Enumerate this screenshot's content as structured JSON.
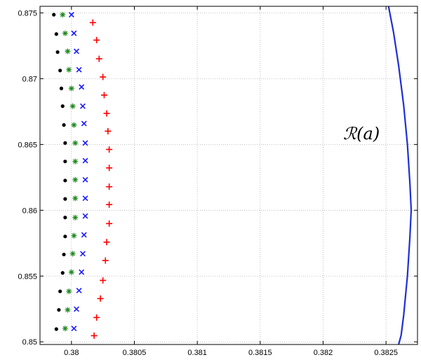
{
  "chart_data": {
    "type": "scatter",
    "xlim": [
      0.37975,
      0.38275
    ],
    "ylim": [
      0.8498,
      0.8755
    ],
    "x_ticks": [
      0.38,
      0.3805,
      0.381,
      0.3815,
      0.382,
      0.3825
    ],
    "x_tick_labels": [
      "0.38",
      "0.3805",
      "0.381",
      "0.3815",
      "0.382",
      "0.3825"
    ],
    "y_ticks": [
      0.85,
      0.855,
      0.86,
      0.865,
      0.87,
      0.875
    ],
    "y_tick_labels": [
      "0.85",
      "0.855",
      "0.86",
      "0.865",
      "0.87",
      "0.875"
    ],
    "grid": true,
    "annotation": {
      "text": "ℛ(a)",
      "x": 0.38245,
      "y": 0.8654
    },
    "series": [
      {
        "marker": "dot",
        "color": "#000000",
        "points": [
          [
            0.37986,
            0.87486
          ],
          [
            0.37988,
            0.87339
          ],
          [
            0.37989,
            0.87202
          ],
          [
            0.37991,
            0.87062
          ],
          [
            0.37992,
            0.86926
          ],
          [
            0.37993,
            0.86791
          ],
          [
            0.37994,
            0.86648
          ],
          [
            0.37995,
            0.86511
          ],
          [
            0.37995,
            0.86371
          ],
          [
            0.37995,
            0.86226
          ],
          [
            0.37995,
            0.86086
          ],
          [
            0.37995,
            0.85945
          ],
          [
            0.37995,
            0.85801
          ],
          [
            0.37994,
            0.85664
          ],
          [
            0.37993,
            0.85524
          ],
          [
            0.37991,
            0.85384
          ],
          [
            0.3799,
            0.85243
          ],
          [
            0.37988,
            0.85097
          ]
        ]
      },
      {
        "marker": "star",
        "color": "#1f8a1f",
        "points": [
          [
            0.37993,
            0.87486
          ],
          [
            0.37995,
            0.87345
          ],
          [
            0.37997,
            0.87208
          ],
          [
            0.37998,
            0.87068
          ],
          [
            0.38,
            0.86926
          ],
          [
            0.38001,
            0.86791
          ],
          [
            0.38002,
            0.86648
          ],
          [
            0.38003,
            0.86511
          ],
          [
            0.38003,
            0.86371
          ],
          [
            0.38003,
            0.86232
          ],
          [
            0.38003,
            0.86091
          ],
          [
            0.38003,
            0.85945
          ],
          [
            0.38002,
            0.85807
          ],
          [
            0.38001,
            0.8567
          ],
          [
            0.38,
            0.8553
          ],
          [
            0.37998,
            0.85384
          ],
          [
            0.37997,
            0.85243
          ],
          [
            0.37995,
            0.85102
          ]
        ]
      },
      {
        "marker": "x",
        "color": "#1a1aff",
        "points": [
          [
            0.38,
            0.87486
          ],
          [
            0.38002,
            0.87345
          ],
          [
            0.38004,
            0.87208
          ],
          [
            0.38006,
            0.87068
          ],
          [
            0.38008,
            0.86937
          ],
          [
            0.38009,
            0.86791
          ],
          [
            0.3801,
            0.86659
          ],
          [
            0.38011,
            0.86511
          ],
          [
            0.38011,
            0.86377
          ],
          [
            0.38011,
            0.86232
          ],
          [
            0.38011,
            0.86091
          ],
          [
            0.38011,
            0.85956
          ],
          [
            0.3801,
            0.85813
          ],
          [
            0.38009,
            0.8567
          ],
          [
            0.38008,
            0.8553
          ],
          [
            0.38006,
            0.8539
          ],
          [
            0.38004,
            0.85249
          ],
          [
            0.38002,
            0.85102
          ]
        ]
      },
      {
        "marker": "plus",
        "color": "#ff0000",
        "points": [
          [
            0.38017,
            0.87426
          ],
          [
            0.3802,
            0.87293
          ],
          [
            0.38022,
            0.87151
          ],
          [
            0.38025,
            0.87013
          ],
          [
            0.38026,
            0.86875
          ],
          [
            0.38028,
            0.86736
          ],
          [
            0.38029,
            0.86601
          ],
          [
            0.3803,
            0.86462
          ],
          [
            0.3803,
            0.86322
          ],
          [
            0.3803,
            0.86179
          ],
          [
            0.3803,
            0.86043
          ],
          [
            0.3803,
            0.85899
          ],
          [
            0.38028,
            0.85758
          ],
          [
            0.38027,
            0.85618
          ],
          [
            0.38025,
            0.85467
          ],
          [
            0.38023,
            0.85329
          ],
          [
            0.3802,
            0.85185
          ],
          [
            0.38018,
            0.85047
          ]
        ]
      },
      {
        "marker": "line",
        "color": "#1f2fd6",
        "points": [
          [
            0.38252,
            0.8755
          ],
          [
            0.38256,
            0.8735
          ],
          [
            0.3826,
            0.871
          ],
          [
            0.38264,
            0.868
          ],
          [
            0.38267,
            0.865
          ],
          [
            0.38269,
            0.862
          ],
          [
            0.3827,
            0.86
          ],
          [
            0.38269,
            0.858
          ],
          [
            0.38267,
            0.855
          ],
          [
            0.38264,
            0.852
          ],
          [
            0.38262,
            0.8505
          ],
          [
            0.3826,
            0.8498
          ]
        ]
      }
    ]
  }
}
